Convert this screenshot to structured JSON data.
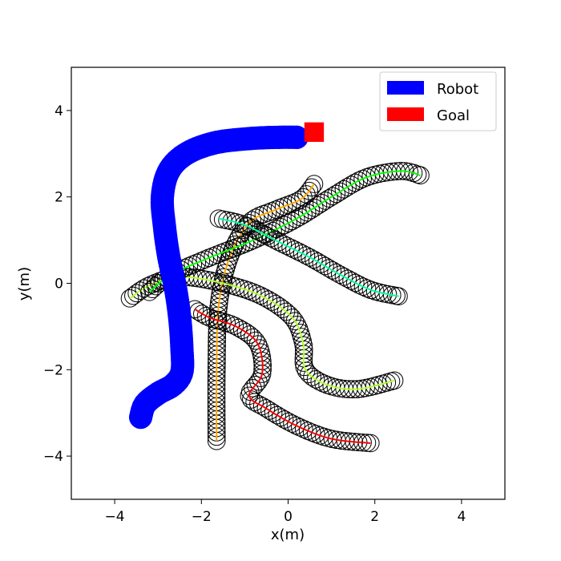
{
  "chart_data": {
    "type": "scatter",
    "title": "",
    "xlabel": "x(m)",
    "ylabel": "y(m)",
    "xlim": [
      -5,
      5
    ],
    "ylim": [
      -5,
      5
    ],
    "xticks": [
      -4,
      -2,
      0,
      2,
      4
    ],
    "yticks": [
      -4,
      -2,
      0,
      2,
      4
    ],
    "grid": false,
    "legend": {
      "position": "top-right",
      "entries": [
        {
          "label": "Robot",
          "color": "#0000ff"
        },
        {
          "label": "Goal",
          "color": "#ff0000"
        }
      ]
    },
    "robot": {
      "color": "#0000ff",
      "radius_m": 0.27,
      "path": [
        [
          -3.4,
          -3.1
        ],
        [
          -3.3,
          -2.8
        ],
        [
          -3.0,
          -2.55
        ],
        [
          -2.65,
          -2.35
        ],
        [
          -2.45,
          -2.05
        ],
        [
          -2.45,
          -1.5
        ],
        [
          -2.5,
          -0.8
        ],
        [
          -2.6,
          -0.1
        ],
        [
          -2.75,
          0.6
        ],
        [
          -2.85,
          1.3
        ],
        [
          -2.9,
          2.0
        ],
        [
          -2.75,
          2.6
        ],
        [
          -2.35,
          3.0
        ],
        [
          -1.7,
          3.25
        ],
        [
          -0.9,
          3.35
        ],
        [
          -0.2,
          3.38
        ],
        [
          0.2,
          3.38
        ]
      ]
    },
    "goal": {
      "color": "#ff0000",
      "x": 0.6,
      "y": 3.5,
      "size_m": 0.45
    },
    "humans": [
      {
        "color": "#ffa500",
        "path": [
          [
            -1.65,
            -3.65
          ],
          [
            -1.65,
            -2.0
          ],
          [
            -1.6,
            -0.5
          ],
          [
            -1.35,
            0.6
          ],
          [
            -0.9,
            1.4
          ],
          [
            -0.3,
            1.7
          ],
          [
            0.3,
            1.95
          ],
          [
            0.6,
            2.3
          ]
        ]
      },
      {
        "color": "#ff0000",
        "path": [
          [
            -2.15,
            -0.6
          ],
          [
            -1.8,
            -0.8
          ],
          [
            -1.2,
            -1.0
          ],
          [
            -0.7,
            -1.4
          ],
          [
            -0.6,
            -2.1
          ],
          [
            -0.9,
            -2.6
          ],
          [
            -0.5,
            -2.9
          ],
          [
            0.2,
            -3.3
          ],
          [
            1.0,
            -3.6
          ],
          [
            1.9,
            -3.7
          ]
        ]
      },
      {
        "color": "#adff2f",
        "path": [
          [
            -3.65,
            -0.35
          ],
          [
            -3.2,
            -0.05
          ],
          [
            -2.5,
            0.15
          ],
          [
            -1.5,
            0.0
          ],
          [
            -0.6,
            -0.3
          ],
          [
            0.1,
            -0.8
          ],
          [
            0.35,
            -1.4
          ],
          [
            0.4,
            -2.0
          ],
          [
            0.9,
            -2.35
          ],
          [
            1.6,
            -2.45
          ],
          [
            2.45,
            -2.25
          ]
        ]
      },
      {
        "color": "#00ff00",
        "path": [
          [
            -3.2,
            -0.2
          ],
          [
            -2.7,
            0.2
          ],
          [
            -1.8,
            0.6
          ],
          [
            -0.8,
            1.0
          ],
          [
            0.2,
            1.5
          ],
          [
            1.0,
            2.0
          ],
          [
            1.8,
            2.45
          ],
          [
            2.6,
            2.6
          ],
          [
            3.05,
            2.5
          ]
        ]
      },
      {
        "color": "#00fa9a",
        "path": [
          [
            -1.6,
            1.5
          ],
          [
            -1.0,
            1.35
          ],
          [
            -0.3,
            1.0
          ],
          [
            0.5,
            0.6
          ],
          [
            1.2,
            0.2
          ],
          [
            1.9,
            -0.15
          ],
          [
            2.55,
            -0.3
          ]
        ]
      }
    ]
  }
}
